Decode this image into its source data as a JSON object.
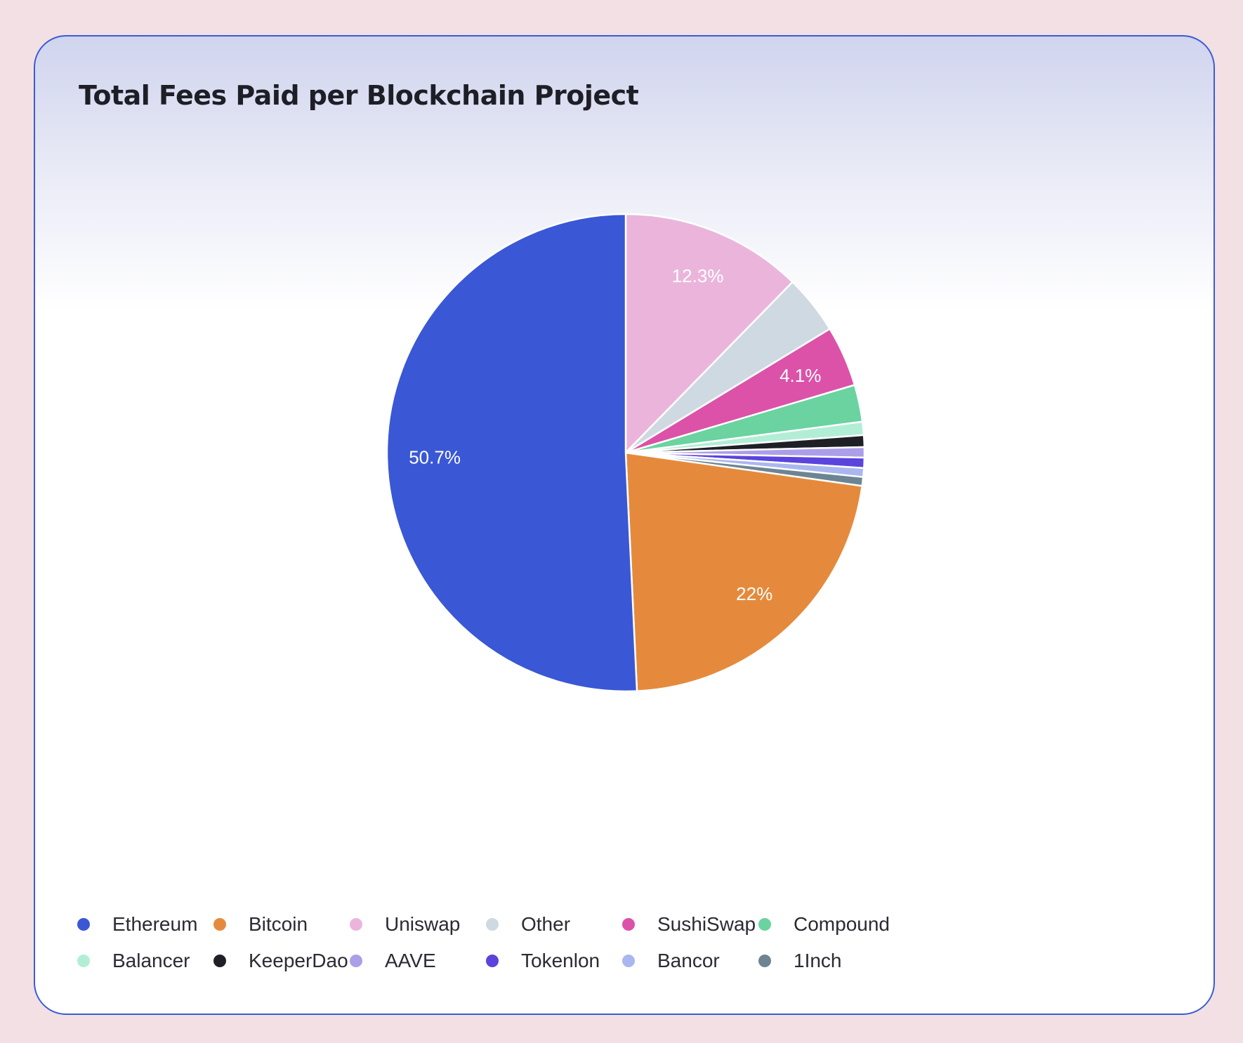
{
  "chart_data": {
    "type": "pie",
    "title": "Total Fees Paid per Blockchain Project",
    "start_angle_deg": 0,
    "direction": "clockwise",
    "slices": [
      {
        "name": "Uniswap",
        "value": 12.3,
        "color": "#ebb5db",
        "label": "12.3%"
      },
      {
        "name": "Other",
        "value": 4.0,
        "color": "#cfd9e2",
        "label": ""
      },
      {
        "name": "SushiSwap",
        "value": 4.1,
        "color": "#dc52a8",
        "label": "4.1%"
      },
      {
        "name": "Compound",
        "value": 2.5,
        "color": "#6ad3a0",
        "label": ""
      },
      {
        "name": "Balancer",
        "value": 0.9,
        "color": "#b2eed6",
        "label": ""
      },
      {
        "name": "KeeperDao",
        "value": 0.8,
        "color": "#1f2026",
        "label": ""
      },
      {
        "name": "AAVE",
        "value": 0.7,
        "color": "#ad9ee9",
        "label": ""
      },
      {
        "name": "Tokenlon",
        "value": 0.7,
        "color": "#5a44dc",
        "label": ""
      },
      {
        "name": "Bancor",
        "value": 0.6,
        "color": "#aab7ef",
        "label": ""
      },
      {
        "name": "1Inch",
        "value": 0.6,
        "color": "#6d8592",
        "label": ""
      },
      {
        "name": "Bitcoin",
        "value": 22.0,
        "color": "#e58a3c",
        "label": "22%"
      },
      {
        "name": "Ethereum",
        "value": 50.7,
        "color": "#3a57d5",
        "label": "50.7%"
      }
    ],
    "legend": {
      "placement": "bottom-left",
      "items": [
        {
          "name": "Ethereum",
          "color": "#3a57d5"
        },
        {
          "name": "Bitcoin",
          "color": "#e58a3c"
        },
        {
          "name": "Uniswap",
          "color": "#ebb5db"
        },
        {
          "name": "Other",
          "color": "#cfd9e2"
        },
        {
          "name": "SushiSwap",
          "color": "#dc52a8"
        },
        {
          "name": "Compound",
          "color": "#6ad3a0"
        },
        {
          "name": "Balancer",
          "color": "#b2eed6"
        },
        {
          "name": "KeeperDao",
          "color": "#1f2026"
        },
        {
          "name": "AAVE",
          "color": "#ad9ee9"
        },
        {
          "name": "Tokenlon",
          "color": "#5a44dc"
        },
        {
          "name": "Bancor",
          "color": "#aab7ef"
        },
        {
          "name": "1Inch",
          "color": "#6d8592"
        }
      ]
    }
  }
}
